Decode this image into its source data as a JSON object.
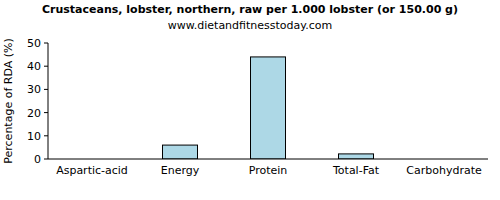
{
  "chart_data": {
    "type": "bar",
    "title": "Crustaceans, lobster, northern, raw per 1.000 lobster (or 150.00 g)",
    "subtitle": "www.dietandfitnesstoday.com",
    "y_label": "Percentage of RDA (%)",
    "categories": [
      "Aspartic-acid",
      "Energy",
      "Protein",
      "Total-Fat",
      "Carbohydrate"
    ],
    "values": [
      0,
      6,
      44,
      2.2,
      0
    ],
    "color": "#add8e6",
    "ylim": [
      0,
      50
    ],
    "yticks": [
      0,
      10,
      20,
      30,
      40,
      50
    ],
    "grid": false
  }
}
